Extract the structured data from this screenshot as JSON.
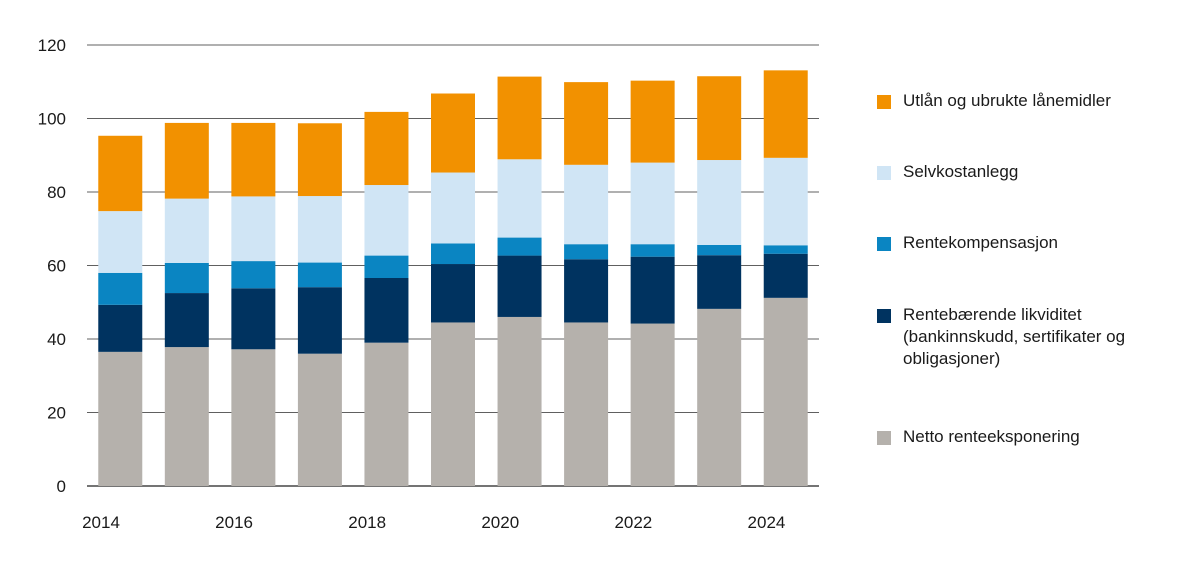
{
  "chart_data": {
    "type": "bar",
    "stacked": true,
    "categories": [
      "2014",
      "2015",
      "2016",
      "2017",
      "2018",
      "2019",
      "2020",
      "2021",
      "2022",
      "2023",
      "2024"
    ],
    "x_tick_labels": [
      "2014",
      "",
      "2016",
      "",
      "2018",
      "",
      "2020",
      "",
      "2022",
      "",
      "2024"
    ],
    "ylim": [
      0,
      120
    ],
    "yticks": [
      0,
      20,
      40,
      60,
      80,
      100,
      120
    ],
    "grid": true,
    "legend_position": "right",
    "series": [
      {
        "name": "Netto renteeksponering",
        "color": "#b5b1ac",
        "values": [
          36.5,
          37.8,
          37.2,
          36.0,
          39.0,
          44.5,
          46.0,
          44.5,
          44.2,
          48.2,
          51.2
        ]
      },
      {
        "name": "Rentebærende likviditet\n(bankinnskudd, sertifikater og\nobligasjoner)",
        "color": "#003360",
        "values": [
          12.8,
          14.7,
          16.6,
          18.1,
          17.6,
          15.9,
          16.7,
          17.2,
          18.2,
          14.6,
          12.0
        ]
      },
      {
        "name": "Rentekompensasjon",
        "color": "#0a85c2",
        "values": [
          8.7,
          8.2,
          7.4,
          6.7,
          6.1,
          5.6,
          4.9,
          4.1,
          3.4,
          2.8,
          2.3
        ]
      },
      {
        "name": "Selvkostanlegg",
        "color": "#d0e5f5",
        "values": [
          16.8,
          17.5,
          17.6,
          18.1,
          19.2,
          19.3,
          21.3,
          21.6,
          22.2,
          23.1,
          23.8
        ]
      },
      {
        "name": "Utlån og ubrukte lånemidler",
        "color": "#f29100",
        "values": [
          20.5,
          20.6,
          20.0,
          19.8,
          19.9,
          21.5,
          22.5,
          22.5,
          22.3,
          22.8,
          23.8
        ]
      }
    ]
  }
}
